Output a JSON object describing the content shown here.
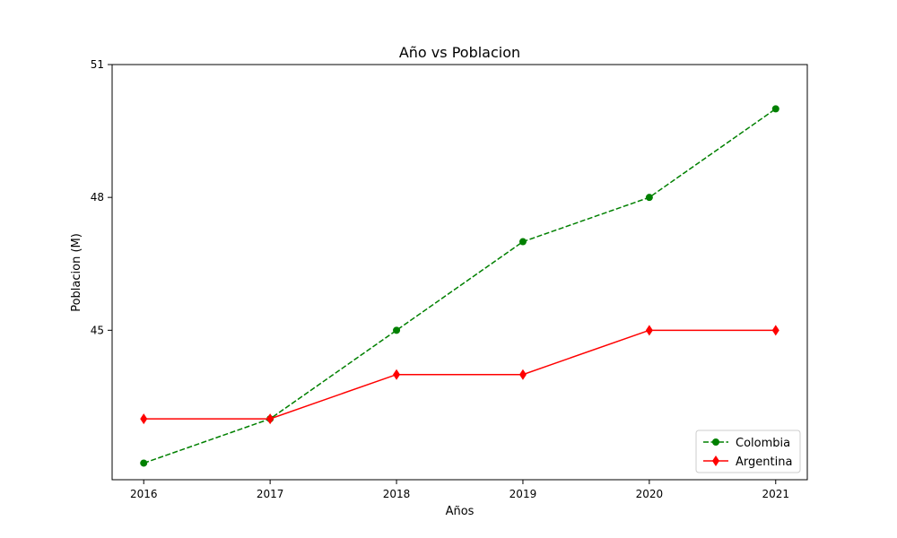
{
  "chart_data": {
    "type": "line",
    "title": "Año vs Poblacion",
    "xlabel": "Años",
    "ylabel": "Poblacion (M)",
    "x": [
      2016,
      2017,
      2018,
      2019,
      2020,
      2021
    ],
    "xlim": [
      2015.75,
      2021.25
    ],
    "ylim": [
      41.625,
      51
    ],
    "yticks": [
      45,
      48,
      51
    ],
    "grid": false,
    "legend_position": "lower-right",
    "series": [
      {
        "name": "Colombia",
        "values": [
          42,
          43,
          45,
          47,
          48,
          50
        ],
        "color": "#008000",
        "line_style": "dashed",
        "marker": "circle"
      },
      {
        "name": "Argentina",
        "values": [
          43,
          43,
          44,
          44,
          45,
          45
        ],
        "color": "#ff0000",
        "line_style": "solid",
        "marker": "diamond"
      }
    ]
  }
}
